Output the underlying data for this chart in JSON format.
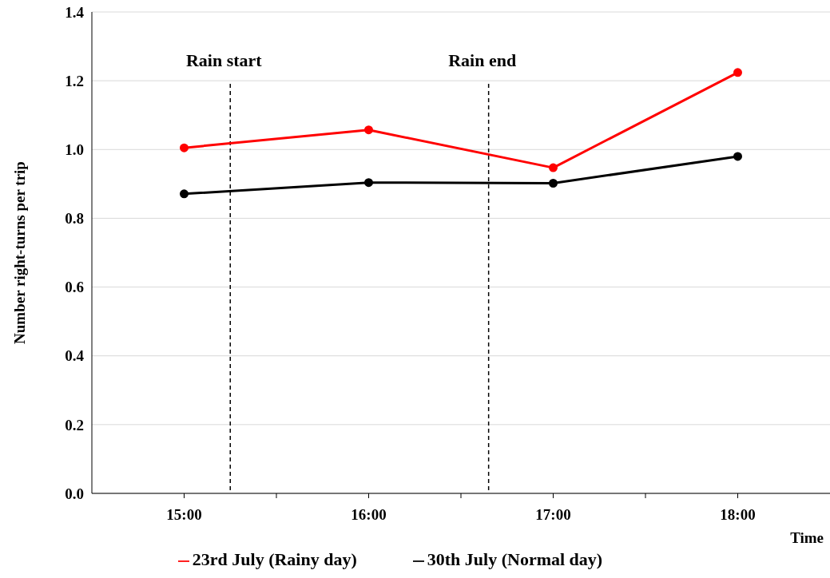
{
  "chart_data": {
    "type": "line",
    "xlabel": "Time",
    "ylabel": "Number right-turns per trip",
    "x": [
      15,
      16,
      17,
      18
    ],
    "series": [
      {
        "name": "23rd July (Rainy day)",
        "color": "#ff0000",
        "values": [
          1.005,
          1.057,
          0.947,
          1.224
        ]
      },
      {
        "name": "30th July (Normal day)",
        "color": "#000000",
        "values": [
          0.871,
          0.904,
          0.902,
          0.98
        ]
      }
    ],
    "xlim": [
      14.5,
      18.5
    ],
    "xticks": [
      {
        "value": 15,
        "label": "15:00"
      },
      {
        "value": 15.5,
        "label": null
      },
      {
        "value": 16,
        "label": "16:00"
      },
      {
        "value": 16.5,
        "label": null
      },
      {
        "value": 17,
        "label": "17:00"
      },
      {
        "value": 17.5,
        "label": null
      },
      {
        "value": 18,
        "label": "18:00"
      }
    ],
    "ylim": [
      0,
      1.4
    ],
    "yticks": [
      {
        "value": 0,
        "label": "0.0"
      },
      {
        "value": 0.2,
        "label": "0.2"
      },
      {
        "value": 0.4,
        "label": "0.4"
      },
      {
        "value": 0.6,
        "label": "0.6"
      },
      {
        "value": 0.8,
        "label": "0.8"
      },
      {
        "value": 1,
        "label": "1.0"
      },
      {
        "value": 1.2,
        "label": "1.2"
      },
      {
        "value": 1.4,
        "label": "1.4"
      }
    ],
    "ref_lines": [
      {
        "axis": "x",
        "value": 15.25,
        "label": "Rain start",
        "line_style": "dashed",
        "color": "#000000"
      },
      {
        "axis": "x",
        "value": 16.65,
        "label": "Rain end",
        "line_style": "dashed",
        "color": "#000000"
      }
    ],
    "grid": "y",
    "legend": "bottom",
    "marker": "circle",
    "line_style": "solid"
  }
}
